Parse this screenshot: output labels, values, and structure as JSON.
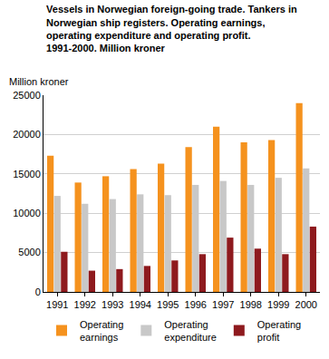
{
  "chart_data": {
    "type": "bar",
    "title": "Vessels in Norwegian foreign-going trade. Tankers in Norwegian ship registers. Operating earnings, operating expenditure and operating profit. 1991-2000. Million kroner",
    "ylabel": "Million kroner",
    "categories": [
      "1991",
      "1992",
      "1993",
      "1994",
      "1995",
      "1996",
      "1997",
      "1998",
      "1999",
      "2000"
    ],
    "series": [
      {
        "name": "Operating earnings",
        "color": "#f5921e",
        "values": [
          17300,
          13900,
          14700,
          15600,
          16300,
          18400,
          21000,
          19000,
          19300,
          24000
        ]
      },
      {
        "name": "Operating expenditure",
        "color": "#c8c8c8",
        "values": [
          12200,
          11200,
          11800,
          12400,
          12300,
          13600,
          14100,
          13600,
          14500,
          15700
        ]
      },
      {
        "name": "Operating profit",
        "color": "#8e1a1e",
        "values": [
          5100,
          2700,
          2900,
          3300,
          4000,
          4800,
          6900,
          5500,
          4800,
          8300
        ]
      }
    ],
    "ylim": [
      0,
      25000
    ],
    "yticks": [
      0,
      5000,
      10000,
      15000,
      20000,
      25000
    ],
    "grid": true,
    "legend": "bottom"
  }
}
